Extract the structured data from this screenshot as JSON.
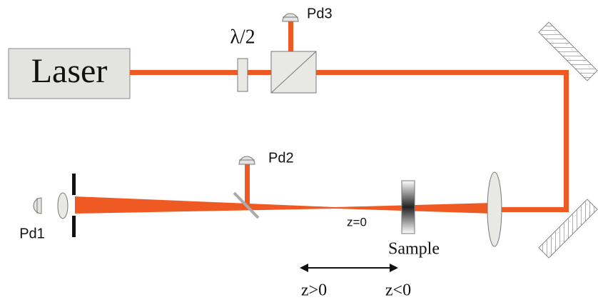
{
  "labels": {
    "laser": "Laser",
    "half_wave": "λ/2",
    "pd3": "Pd3",
    "pd2": "Pd2",
    "pd1": "Pd1",
    "focus": "z=0",
    "sample": "Sample",
    "z_pos": "z>0",
    "z_neg": "z<0"
  }
}
